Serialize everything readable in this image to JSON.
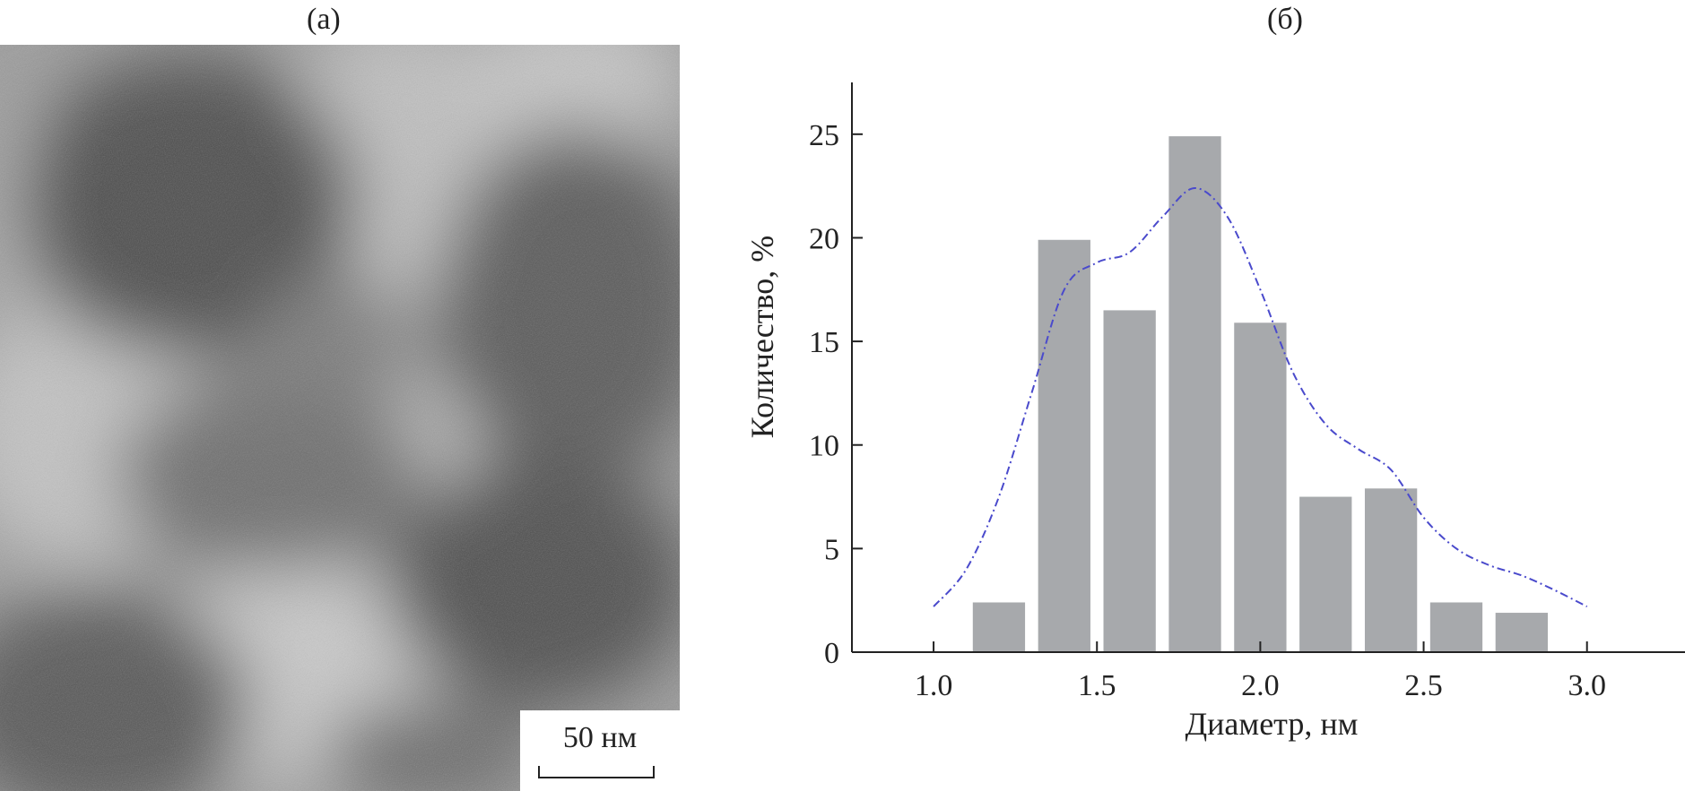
{
  "panels": {
    "a_label": "(а)",
    "b_label": "(б)"
  },
  "micrograph": {
    "scale_label": "50 нм"
  },
  "chart_data": {
    "type": "bar",
    "xlabel": "Диаметр, нм",
    "ylabel": "Количество, %",
    "xlim": [
      0.75,
      3.3
    ],
    "ylim": [
      0,
      27.5
    ],
    "xticks": [
      1.0,
      1.5,
      2.0,
      2.5,
      3.0
    ],
    "xtick_labels": [
      "1.0",
      "1.5",
      "2.0",
      "2.5",
      "3.0"
    ],
    "yticks": [
      0,
      5,
      10,
      15,
      20,
      25
    ],
    "ytick_labels": [
      "0",
      "5",
      "10",
      "15",
      "20",
      "25"
    ],
    "bar_width": 0.16,
    "bars": [
      {
        "x": 1.2,
        "value": 2.4
      },
      {
        "x": 1.4,
        "value": 19.9
      },
      {
        "x": 1.6,
        "value": 16.5
      },
      {
        "x": 1.8,
        "value": 24.9
      },
      {
        "x": 2.0,
        "value": 15.9
      },
      {
        "x": 2.2,
        "value": 7.5
      },
      {
        "x": 2.4,
        "value": 7.9
      },
      {
        "x": 2.6,
        "value": 2.4
      },
      {
        "x": 2.8,
        "value": 1.9
      }
    ],
    "fit_curve": {
      "x": [
        1.0,
        1.1,
        1.2,
        1.3,
        1.4,
        1.5,
        1.6,
        1.7,
        1.8,
        1.9,
        2.0,
        2.1,
        2.2,
        2.3,
        2.4,
        2.5,
        2.6,
        2.7,
        2.8,
        2.9,
        3.0
      ],
      "y": [
        2.2,
        4.0,
        7.5,
        12.5,
        17.5,
        18.8,
        19.3,
        21.0,
        22.4,
        21.0,
        17.5,
        13.5,
        11.0,
        9.8,
        8.8,
        6.5,
        5.0,
        4.2,
        3.7,
        3.0,
        2.2
      ],
      "color": "#4a4acc"
    },
    "colors": {
      "bar": "#a7a9ac",
      "axis": "#222222"
    }
  }
}
